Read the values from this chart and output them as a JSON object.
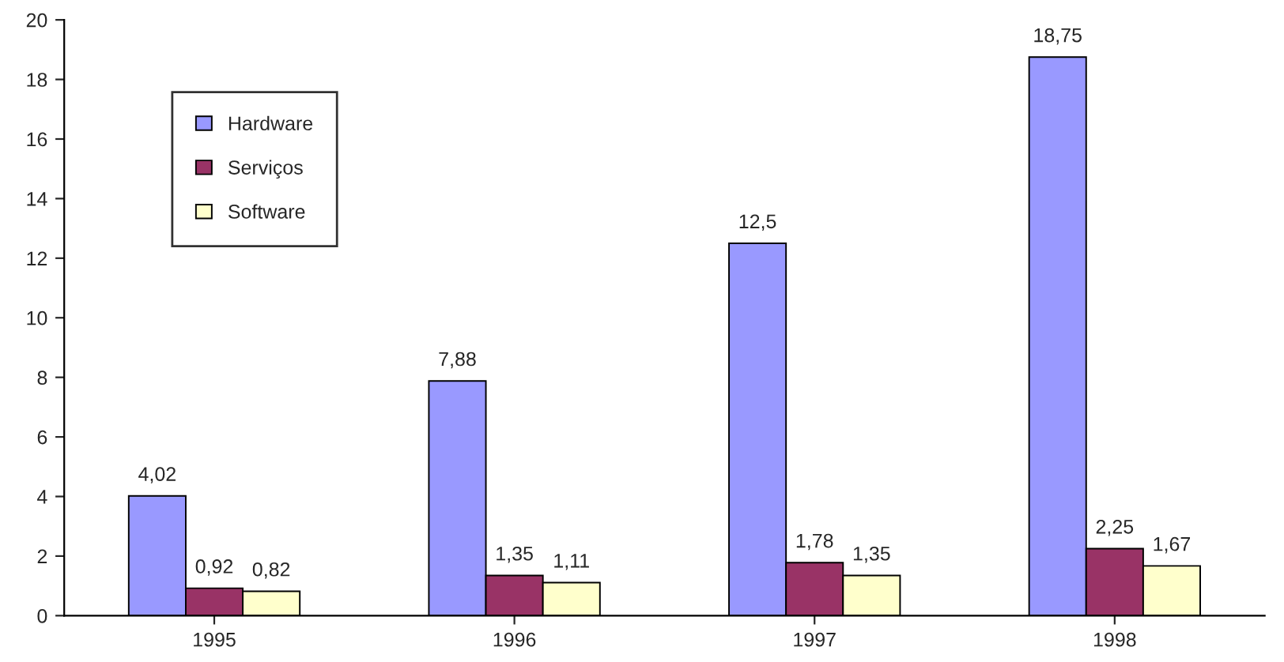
{
  "chart_data": {
    "type": "bar",
    "categories": [
      "1995",
      "1996",
      "1997",
      "1998"
    ],
    "series": [
      {
        "name": "Hardware",
        "color": "#9999ff",
        "values": [
          4.02,
          7.88,
          12.5,
          18.75
        ],
        "value_labels": [
          "4,02",
          "7,88",
          "12,5",
          "18,75"
        ]
      },
      {
        "name": "Serviços",
        "color": "#993366",
        "values": [
          0.92,
          1.35,
          1.78,
          2.25
        ],
        "value_labels": [
          "0,92",
          "1,35",
          "1,78",
          "2,25"
        ]
      },
      {
        "name": "Software",
        "color": "#ffffcc",
        "values": [
          0.82,
          1.11,
          1.35,
          1.67
        ],
        "value_labels": [
          "0,82",
          "1,11",
          "1,35",
          "1,67"
        ]
      }
    ],
    "ylim": [
      0,
      20
    ],
    "yticks": [
      0,
      2,
      4,
      6,
      8,
      10,
      12,
      14,
      16,
      18,
      20
    ],
    "grid": false,
    "legend": "top left"
  }
}
